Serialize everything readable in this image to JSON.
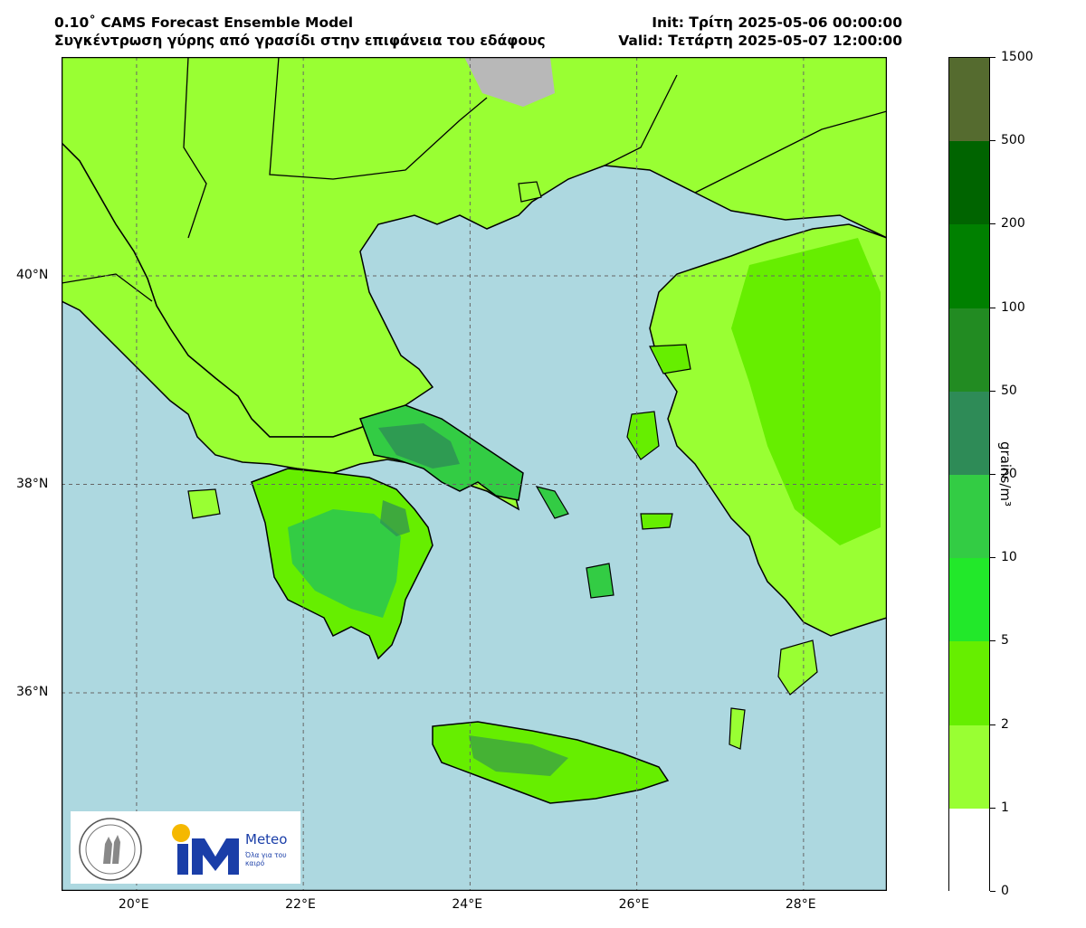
{
  "header": {
    "title_line1": "0.10˚ CAMS Forecast Ensemble Model",
    "title_line2": "Συγκέντρωση γύρης από γρασίδι στην επιφάνεια του εδάφους",
    "init_line": "Init: Τρίτη 2025-05-06 00:00:00",
    "valid_line": "Valid: Τετάρτη 2025-05-07 12:00:00"
  },
  "map": {
    "lat_ticks": [
      {
        "label": "40°N",
        "value": 40
      },
      {
        "label": "38°N",
        "value": 38
      },
      {
        "label": "36°N",
        "value": 36
      }
    ],
    "lon_ticks": [
      {
        "label": "20°E",
        "value": 20
      },
      {
        "label": "22°E",
        "value": 22
      },
      {
        "label": "24°E",
        "value": 24
      },
      {
        "label": "26°E",
        "value": 26
      },
      {
        "label": "28°E",
        "value": 28
      }
    ],
    "lon_range": [
      19.1,
      29.0
    ],
    "lat_range": [
      34.1,
      42.1
    ],
    "sea_color": "#add8e0",
    "land_base_color": "#99ff33"
  },
  "colorbar": {
    "title": "grains/m³",
    "levels": [
      {
        "label": "0",
        "color": "#ffffff"
      },
      {
        "label": "1",
        "color": "#99ff33"
      },
      {
        "label": "2",
        "color": "#66ee00"
      },
      {
        "label": "5",
        "color": "#22e82a"
      },
      {
        "label": "10",
        "color": "#33cc44"
      },
      {
        "label": "20",
        "color": "#2e8b57"
      },
      {
        "label": "50",
        "color": "#228b22"
      },
      {
        "label": "100",
        "color": "#008000"
      },
      {
        "label": "200",
        "color": "#006400"
      },
      {
        "label": "500",
        "color": "#556b2f"
      },
      {
        "label": "1500",
        "color": ""
      }
    ]
  },
  "logos": {
    "meteo_name": "Meteo",
    "meteo_tagline": "Όλα για του καιρό"
  }
}
